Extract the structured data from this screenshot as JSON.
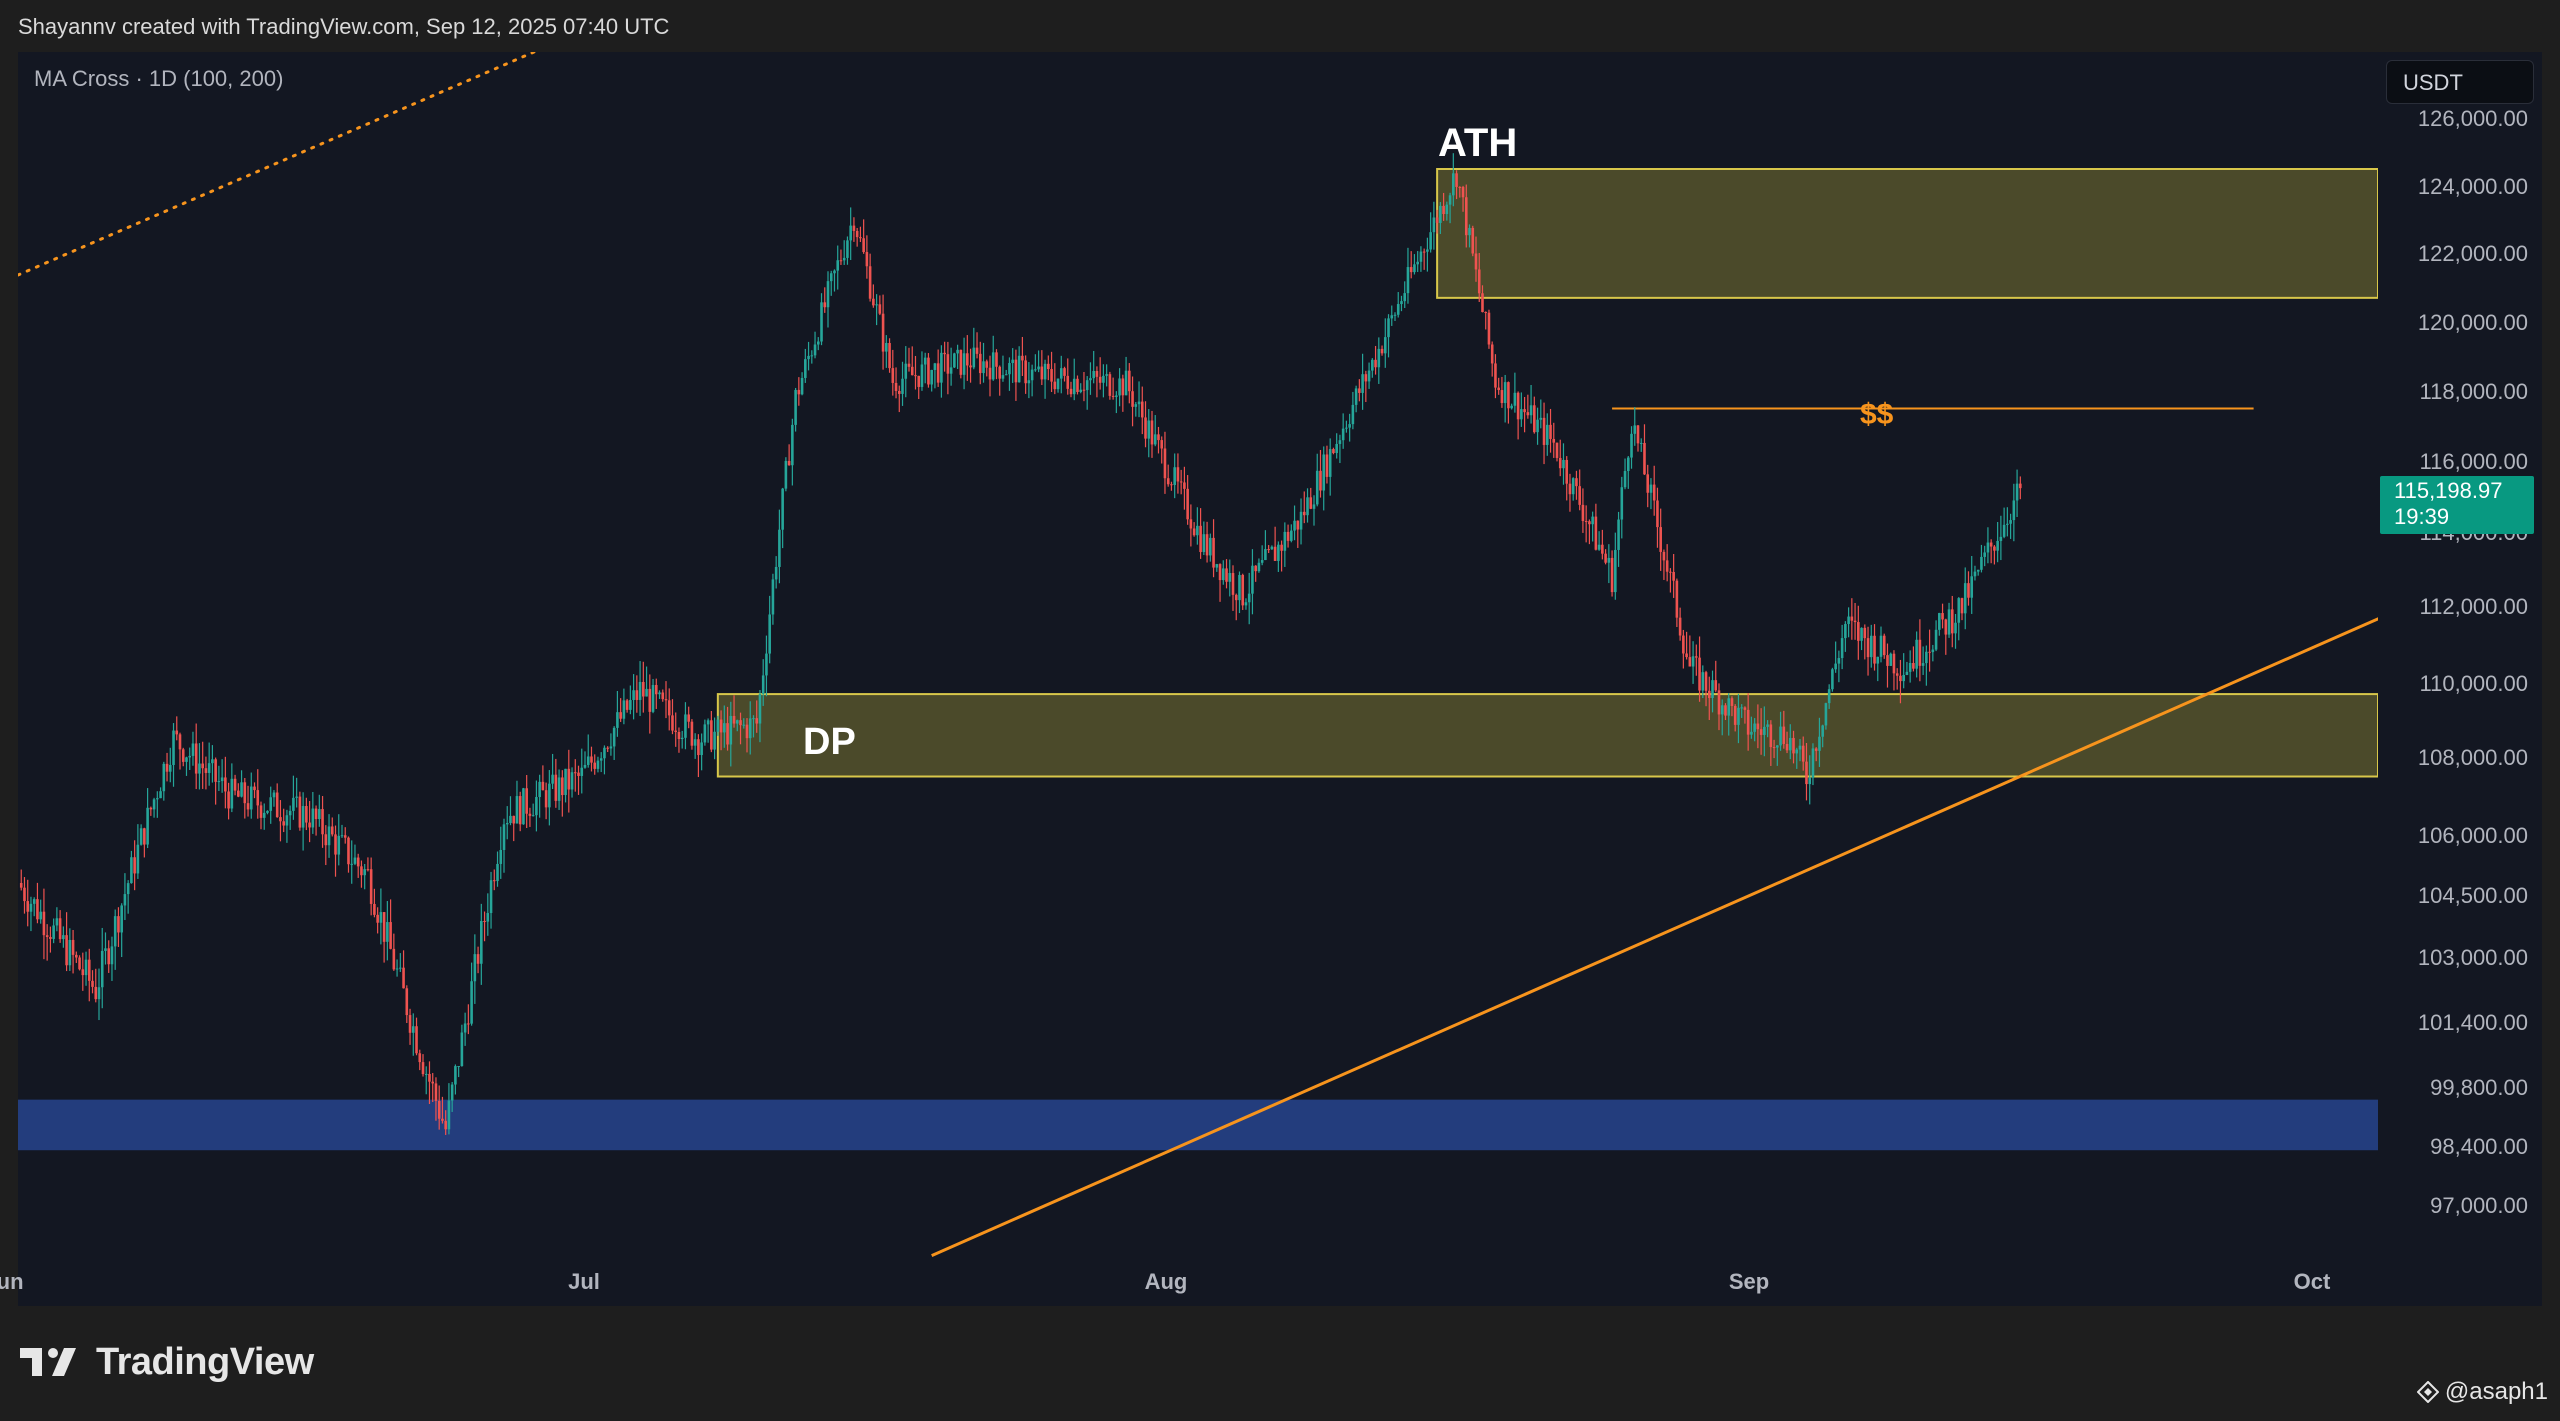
{
  "header": {
    "text": "Shayannv created with TradingView.com, Sep 12, 2025 07:40 UTC"
  },
  "indicator": {
    "label": "MA Cross · 1D (100, 200)"
  },
  "currency": "USDT",
  "price_tag": {
    "price": "115,198.97",
    "countdown": "19:39"
  },
  "branding": {
    "logo_text": "TradingView",
    "credit": "@asaph1"
  },
  "chart_data": {
    "type": "candlestick",
    "timeframe": "1D",
    "y_ticks": [
      "126,000.00",
      "124,000.00",
      "122,000.00",
      "120,000.00",
      "118,000.00",
      "116,000.00",
      "114,000.00",
      "112,000.00",
      "110,000.00",
      "108,000.00",
      "106,000.00",
      "104,500.00",
      "103,000.00",
      "101,400.00",
      "99,800.00",
      "98,400.00",
      "97,000.00"
    ],
    "x_ticks": [
      "Jun",
      "Jul",
      "Aug",
      "Sep",
      "Oct"
    ],
    "last_price": 115198.97,
    "price_path": [
      {
        "date": "2025-06-01",
        "price": 104800
      },
      {
        "date": "2025-06-05",
        "price": 102200
      },
      {
        "date": "2025-06-09",
        "price": 108500
      },
      {
        "date": "2025-06-12",
        "price": 107000
      },
      {
        "date": "2025-06-16",
        "price": 106500
      },
      {
        "date": "2025-06-19",
        "price": 105000
      },
      {
        "date": "2025-06-22",
        "price": 100200
      },
      {
        "date": "2025-06-23",
        "price": 98800
      },
      {
        "date": "2025-06-26",
        "price": 106500
      },
      {
        "date": "2025-06-30",
        "price": 107500
      },
      {
        "date": "2025-07-03",
        "price": 109800
      },
      {
        "date": "2025-07-06",
        "price": 108500
      },
      {
        "date": "2025-07-09",
        "price": 108900
      },
      {
        "date": "2025-07-11",
        "price": 117800
      },
      {
        "date": "2025-07-14",
        "price": 123100
      },
      {
        "date": "2025-07-16",
        "price": 118300
      },
      {
        "date": "2025-07-20",
        "price": 118900
      },
      {
        "date": "2025-07-24",
        "price": 118400
      },
      {
        "date": "2025-07-28",
        "price": 118200
      },
      {
        "date": "2025-08-01",
        "price": 113700
      },
      {
        "date": "2025-08-03",
        "price": 112300
      },
      {
        "date": "2025-08-06",
        "price": 114400
      },
      {
        "date": "2025-08-10",
        "price": 119200
      },
      {
        "date": "2025-08-14",
        "price": 124400
      },
      {
        "date": "2025-08-16",
        "price": 118300
      },
      {
        "date": "2025-08-19",
        "price": 116500
      },
      {
        "date": "2025-08-22",
        "price": 112800
      },
      {
        "date": "2025-08-23",
        "price": 117200
      },
      {
        "date": "2025-08-26",
        "price": 110400
      },
      {
        "date": "2025-08-29",
        "price": 108800
      },
      {
        "date": "2025-08-31",
        "price": 108600
      },
      {
        "date": "2025-09-01",
        "price": 107500
      },
      {
        "date": "2025-09-03",
        "price": 111500
      },
      {
        "date": "2025-09-06",
        "price": 110400
      },
      {
        "date": "2025-09-09",
        "price": 112000
      },
      {
        "date": "2025-09-12",
        "price": 115198.97
      }
    ],
    "zones": [
      {
        "label": "ATH",
        "from": 120700,
        "to": 124500,
        "start": "2025-08-13"
      },
      {
        "label": "DP",
        "from": 107500,
        "to": 109700,
        "start": "2025-07-07"
      },
      {
        "label": "",
        "from": 98300,
        "to": 99500,
        "start": "2025-06-01"
      }
    ],
    "liquidity_line": {
      "label": "$$",
      "price": 117500,
      "start": "2025-08-22",
      "end": "2025-09-24"
    },
    "trendline": {
      "from": {
        "date": "2025-07-18",
        "price": 95800
      },
      "to": {
        "date": "2025-10-01",
        "price": 111800
      }
    },
    "ma_line": {
      "style": "dotted"
    },
    "colors": {
      "up": "#26a69a",
      "down": "#ef5350",
      "background": "#131722",
      "zone_fill": "#4b4a2a",
      "zone_border": "#d8c74a",
      "demand_fill": "#233d7d",
      "trend": "#f7941d",
      "price_tag": "#089981"
    }
  }
}
